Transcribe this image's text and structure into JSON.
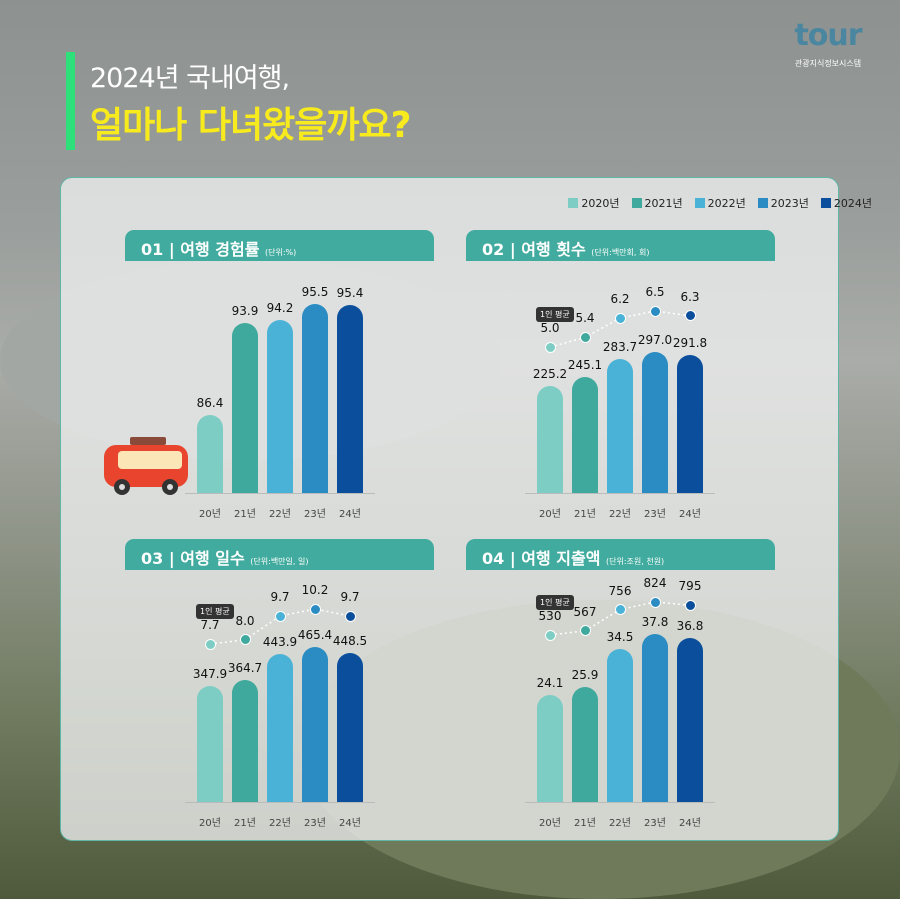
{
  "header": {
    "line1": "2024년 국내여행,",
    "line2": "얼마나 다녀왔을까요?"
  },
  "logo": {
    "word": "tour",
    "sub": "관광지식정보시스템"
  },
  "legend": [
    {
      "label": "2020년",
      "color": "#7ecdc4"
    },
    {
      "label": "2021년",
      "color": "#3ea99c"
    },
    {
      "label": "2022년",
      "color": "#4ab2d6"
    },
    {
      "label": "2023년",
      "color": "#2a8cc2"
    },
    {
      "label": "2024년",
      "color": "#0b4f9c"
    }
  ],
  "avg_badge": "1인 평균",
  "chart_data": [
    {
      "type": "bar",
      "title": "01 | 여행 경험률",
      "unit": "(단위:%)",
      "categories": [
        "20년",
        "21년",
        "22년",
        "23년",
        "24년"
      ],
      "values": [
        86.4,
        93.9,
        94.2,
        95.5,
        95.4
      ],
      "value_labels": [
        "86.4",
        "93.9",
        "94.2",
        "95.5",
        "95.4"
      ],
      "ylim": [
        80,
        96.4
      ]
    },
    {
      "type": "bar+line",
      "title": "02 | 여행 횟수",
      "unit": "(단위:백만회, 회)",
      "categories": [
        "20년",
        "21년",
        "22년",
        "23년",
        "24년"
      ],
      "values": [
        225.2,
        245.1,
        283.7,
        297.0,
        291.8
      ],
      "value_labels": [
        "225.2",
        "245.1",
        "283.7",
        "297.0",
        "291.8"
      ],
      "ylim": [
        0,
        422
      ],
      "avg": [
        5.0,
        5.4,
        6.2,
        6.5,
        6.3
      ],
      "avg_labels": [
        "5.0",
        "5.4",
        "6.2",
        "6.5",
        "6.3"
      ]
    },
    {
      "type": "bar+line",
      "title": "03 | 여행 일수",
      "unit": "(단위:백만일, 일)",
      "categories": [
        "20년",
        "21년",
        "22년",
        "23년",
        "24년"
      ],
      "values": [
        347.9,
        364.7,
        443.9,
        465.4,
        448.5
      ],
      "value_labels": [
        "347.9",
        "364.7",
        "443.9",
        "465.4",
        "448.5"
      ],
      "ylim": [
        0,
        600
      ],
      "avg": [
        7.7,
        8.0,
        9.7,
        10.2,
        9.7
      ],
      "avg_labels": [
        "7.7",
        "8.0",
        "9.7",
        "10.2",
        "9.7"
      ]
    },
    {
      "type": "bar+line",
      "title": "04 | 여행 지출액",
      "unit": "(단위:조원, 천원)",
      "categories": [
        "20년",
        "21년",
        "22년",
        "23년",
        "24년"
      ],
      "values": [
        24.1,
        25.9,
        34.5,
        37.8,
        36.8
      ],
      "value_labels": [
        "24.1",
        "25.9",
        "34.5",
        "37.8",
        "36.8"
      ],
      "ylim": [
        0,
        45
      ],
      "avg": [
        530,
        567,
        756,
        824,
        795
      ],
      "avg_labels": [
        "530",
        "567",
        "756",
        "824",
        "795"
      ]
    }
  ]
}
